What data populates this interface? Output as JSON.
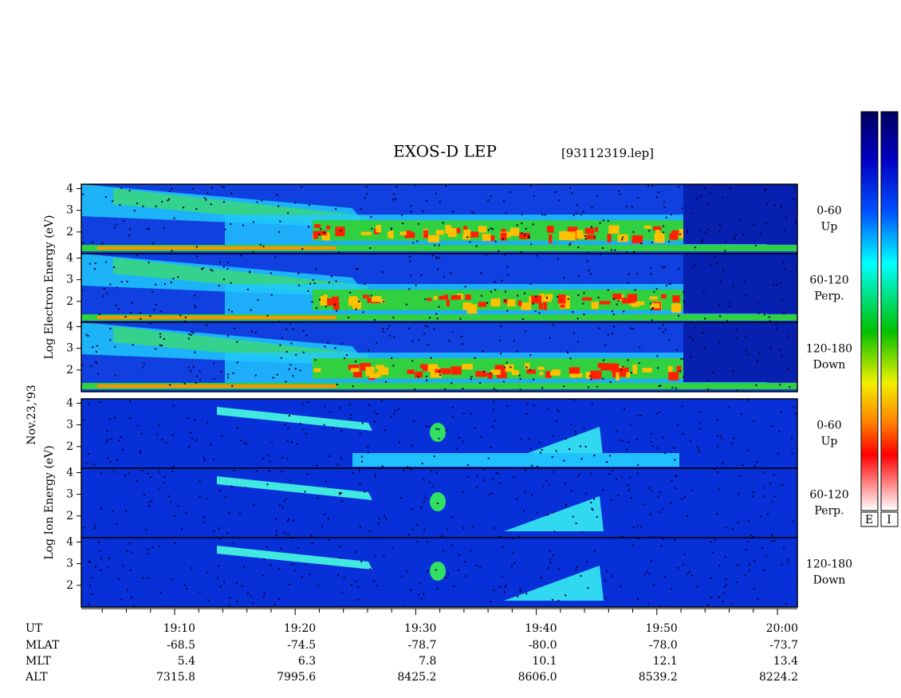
{
  "chart_data": {
    "type": "spectrogram",
    "title": "EXOS-D LEP",
    "file": "[93112319.lep]",
    "electron_label": "Log Electron Energy (eV)",
    "date": "Nov.23,'93",
    "ion_label": "Log Ion Energy (eV)",
    "ylim": [
      1,
      4.2
    ],
    "yticks": [
      2,
      3,
      4
    ],
    "panels": [
      {
        "species": "electron",
        "label": [
          "0-60",
          "Up"
        ]
      },
      {
        "species": "electron",
        "label": [
          "60-120",
          "Perp."
        ]
      },
      {
        "species": "electron",
        "label": [
          "120-180",
          "Down"
        ]
      },
      {
        "species": "ion",
        "label": [
          "0-60",
          "Up"
        ]
      },
      {
        "species": "ion",
        "label": [
          "60-120",
          "Perp."
        ]
      },
      {
        "species": "ion",
        "label": [
          "120-180",
          "Down"
        ]
      }
    ],
    "colorbar_labels": [
      "E",
      "I"
    ],
    "ephemeris": {
      "row_labels": [
        "UT",
        "MLAT",
        "MLT",
        "ALT"
      ],
      "UT": [
        "19:10",
        "19:20",
        "19:30",
        "19:40",
        "19:50",
        "20:00"
      ],
      "MLAT": [
        "-68.5",
        "-74.5",
        "-78.7",
        "-80.0",
        "-78.0",
        "-73.7"
      ],
      "MLT": [
        "5.4",
        "6.3",
        "7.8",
        "10.1",
        "12.1",
        "13.4"
      ],
      "ALT": [
        "7315.8",
        "7995.6",
        "8425.2",
        "8606.0",
        "8539.2",
        "8224.2"
      ]
    }
  }
}
